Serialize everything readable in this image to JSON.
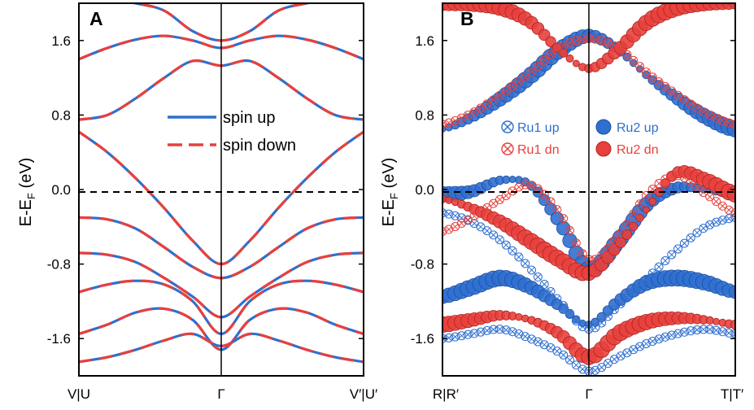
{
  "colors": {
    "spin_up": "#2f6fd0",
    "spin_down": "#e8403c",
    "axis": "#000000"
  },
  "chart_data": [
    {
      "panel": "A",
      "type": "line",
      "ylabel": "E-E",
      "ylabel_sub": "F",
      "ylabel_unit": " (eV)",
      "ylim": [
        -2.0,
        2.0
      ],
      "yticks": [
        1.6,
        0.8,
        0.0,
        -0.8,
        -1.6
      ],
      "ytick_labels": [
        "1.6",
        "0.8",
        "0.0",
        "-0.8",
        "-1.6"
      ],
      "xticks": [
        "V|U",
        "Γ",
        "V′|U′"
      ],
      "fermi_line": 0.0,
      "legend": [
        {
          "label": "spin up",
          "style": "solid",
          "color": "#2f6fd0"
        },
        {
          "label": "spin down",
          "style": "dashed",
          "color": "#e8403c"
        }
      ],
      "series": [
        {
          "x": [
            0,
            0.1,
            0.2,
            0.3,
            0.4,
            0.5,
            0.6,
            0.7,
            0.8,
            0.9,
            1.0
          ],
          "y": [
            1.4,
            1.52,
            1.61,
            1.65,
            1.6,
            1.52,
            1.6,
            1.65,
            1.61,
            1.52,
            1.4
          ]
        },
        {
          "x": [
            0,
            0.1,
            0.2,
            0.3,
            0.4,
            0.5,
            0.6,
            0.7,
            0.8,
            0.9,
            1.0
          ],
          "y": [
            2.05,
            2.05,
            2.0,
            1.92,
            1.7,
            1.6,
            1.7,
            1.92,
            2.0,
            2.05,
            2.05
          ]
        },
        {
          "x": [
            0,
            0.1,
            0.2,
            0.3,
            0.4,
            0.5,
            0.6,
            0.7,
            0.8,
            0.9,
            1.0
          ],
          "y": [
            0.75,
            0.8,
            0.98,
            1.2,
            1.38,
            1.33,
            1.38,
            1.2,
            0.98,
            0.8,
            0.75
          ]
        },
        {
          "x": [
            0,
            0.1,
            0.2,
            0.3,
            0.4,
            0.5,
            0.6,
            0.7,
            0.8,
            0.9,
            1.0
          ],
          "y": [
            0.62,
            0.4,
            0.12,
            -0.2,
            -0.55,
            -0.8,
            -0.55,
            -0.2,
            0.12,
            0.4,
            0.62
          ]
        },
        {
          "x": [
            0,
            0.1,
            0.2,
            0.3,
            0.4,
            0.5,
            0.6,
            0.7,
            0.8,
            0.9,
            1.0
          ],
          "y": [
            -0.3,
            -0.32,
            -0.42,
            -0.62,
            -0.83,
            -0.95,
            -0.83,
            -0.62,
            -0.42,
            -0.32,
            -0.3
          ]
        },
        {
          "x": [
            0,
            0.1,
            0.2,
            0.3,
            0.4,
            0.5,
            0.6,
            0.7,
            0.8,
            0.9,
            1.0
          ],
          "y": [
            -0.68,
            -0.7,
            -0.78,
            -0.95,
            -1.15,
            -1.37,
            -1.15,
            -0.95,
            -0.78,
            -0.7,
            -0.68
          ]
        },
        {
          "x": [
            0,
            0.1,
            0.2,
            0.3,
            0.4,
            0.5,
            0.6,
            0.7,
            0.8,
            0.9,
            1.0
          ],
          "y": [
            -1.1,
            -1.02,
            -0.98,
            -1.02,
            -1.2,
            -1.55,
            -1.2,
            -1.02,
            -0.98,
            -1.02,
            -1.1
          ]
        },
        {
          "x": [
            0,
            0.1,
            0.2,
            0.3,
            0.4,
            0.5,
            0.6,
            0.7,
            0.8,
            0.9,
            1.0
          ],
          "y": [
            -1.55,
            -1.45,
            -1.32,
            -1.28,
            -1.4,
            -1.72,
            -1.4,
            -1.28,
            -1.32,
            -1.45,
            -1.55
          ]
        },
        {
          "x": [
            0,
            0.1,
            0.2,
            0.3,
            0.4,
            0.5,
            0.6,
            0.7,
            0.8,
            0.9,
            1.0
          ],
          "y": [
            -1.85,
            -1.8,
            -1.72,
            -1.62,
            -1.55,
            -1.68,
            -1.55,
            -1.62,
            -1.72,
            -1.8,
            -1.85
          ]
        }
      ]
    },
    {
      "panel": "B",
      "type": "scatter",
      "ylabel": "E-E",
      "ylabel_sub": "F",
      "ylabel_unit": " (eV)",
      "ylim": [
        -2.0,
        2.0
      ],
      "yticks": [
        1.6,
        0.8,
        0.0,
        -0.8,
        -1.6
      ],
      "ytick_labels": [
        "1.6",
        "0.8",
        "0.0",
        "-0.8",
        "-1.6"
      ],
      "xticks": [
        "R|R′",
        "Γ",
        "T|T′"
      ],
      "fermi_line": 0.0,
      "legend": [
        {
          "label": "Ru1 up",
          "marker": "crossed-circle",
          "color": "#2f6fd0"
        },
        {
          "label": "Ru2 up",
          "marker": "sphere",
          "color": "#2f6fd0"
        },
        {
          "label": "Ru1 dn",
          "marker": "crossed-circle",
          "color": "#e8403c"
        },
        {
          "label": "Ru2 dn",
          "marker": "sphere",
          "color": "#e8403c"
        }
      ],
      "series": [
        {
          "name": "Ru2 up",
          "x": [
            0,
            0.1,
            0.2,
            0.3,
            0.4,
            0.5,
            0.6,
            0.7,
            0.8,
            0.9,
            1.0
          ],
          "y": [
            0.65,
            0.78,
            0.98,
            1.22,
            1.5,
            1.65,
            1.5,
            1.22,
            0.98,
            0.78,
            0.65
          ]
        },
        {
          "name": "Ru2 dn",
          "x": [
            0,
            0.1,
            0.2,
            0.3,
            0.4,
            0.5,
            0.6,
            0.7,
            0.8,
            0.9,
            1.0
          ],
          "y": [
            2.0,
            2.0,
            1.95,
            1.8,
            1.5,
            1.3,
            1.5,
            1.8,
            1.95,
            2.0,
            2.0
          ]
        },
        {
          "name": "Ru2 up",
          "x": [
            0,
            0.1,
            0.2,
            0.3,
            0.4,
            0.5,
            0.6,
            0.7,
            0.8,
            0.9,
            1.0
          ],
          "y": [
            -0.05,
            -0.02,
            0.1,
            0.05,
            -0.35,
            -0.85,
            -0.55,
            -0.15,
            0.02,
            0.0,
            -0.05
          ]
        },
        {
          "name": "Ru2 dn",
          "x": [
            0,
            0.1,
            0.2,
            0.3,
            0.4,
            0.5,
            0.6,
            0.7,
            0.8,
            0.9,
            1.0
          ],
          "y": [
            -0.1,
            -0.2,
            -0.35,
            -0.55,
            -0.75,
            -0.9,
            -0.6,
            -0.2,
            0.18,
            0.1,
            -0.05
          ]
        },
        {
          "name": "Ru2 up",
          "x": [
            0,
            0.1,
            0.2,
            0.3,
            0.4,
            0.5,
            0.6,
            0.7,
            0.8,
            0.9,
            1.0
          ],
          "y": [
            -1.15,
            -1.05,
            -0.95,
            -1.05,
            -1.25,
            -1.45,
            -1.2,
            -1.0,
            -0.95,
            -1.0,
            -1.1
          ]
        },
        {
          "name": "Ru2 dn",
          "x": [
            0,
            0.1,
            0.2,
            0.3,
            0.4,
            0.5,
            0.6,
            0.7,
            0.8,
            0.9,
            1.0
          ],
          "y": [
            -1.45,
            -1.4,
            -1.35,
            -1.4,
            -1.55,
            -1.8,
            -1.55,
            -1.42,
            -1.38,
            -1.4,
            -1.45
          ]
        },
        {
          "name": "Ru1 up",
          "x": [
            0,
            0.1,
            0.2,
            0.3,
            0.4,
            0.5,
            0.6,
            0.7,
            0.8,
            0.9,
            1.0
          ],
          "y": [
            -0.25,
            -0.35,
            -0.55,
            -0.85,
            -1.2,
            -1.5,
            -1.25,
            -0.95,
            -0.65,
            -0.4,
            -0.3
          ]
        },
        {
          "name": "Ru1 dn",
          "x": [
            0,
            0.1,
            0.2,
            0.3,
            0.4,
            0.5,
            0.6,
            0.7,
            0.8,
            0.9,
            1.0
          ],
          "y": [
            -0.45,
            -0.3,
            -0.1,
            0.05,
            -0.25,
            -0.75,
            -0.5,
            -0.05,
            0.15,
            -0.05,
            -0.25
          ]
        },
        {
          "name": "Ru1 up",
          "x": [
            0,
            0.1,
            0.2,
            0.3,
            0.4,
            0.5,
            0.6,
            0.7,
            0.8,
            0.9,
            1.0
          ],
          "y": [
            -1.6,
            -1.55,
            -1.5,
            -1.6,
            -1.75,
            -1.95,
            -1.8,
            -1.65,
            -1.55,
            -1.5,
            -1.55
          ]
        },
        {
          "name": "Ru1 dn",
          "x": [
            0,
            0.1,
            0.2,
            0.3,
            0.4,
            0.5,
            0.6,
            0.7,
            0.8,
            0.9,
            1.0
          ],
          "y": [
            0.7,
            0.82,
            1.02,
            1.25,
            1.52,
            1.62,
            1.52,
            1.25,
            1.02,
            0.82,
            0.7
          ]
        }
      ]
    }
  ]
}
